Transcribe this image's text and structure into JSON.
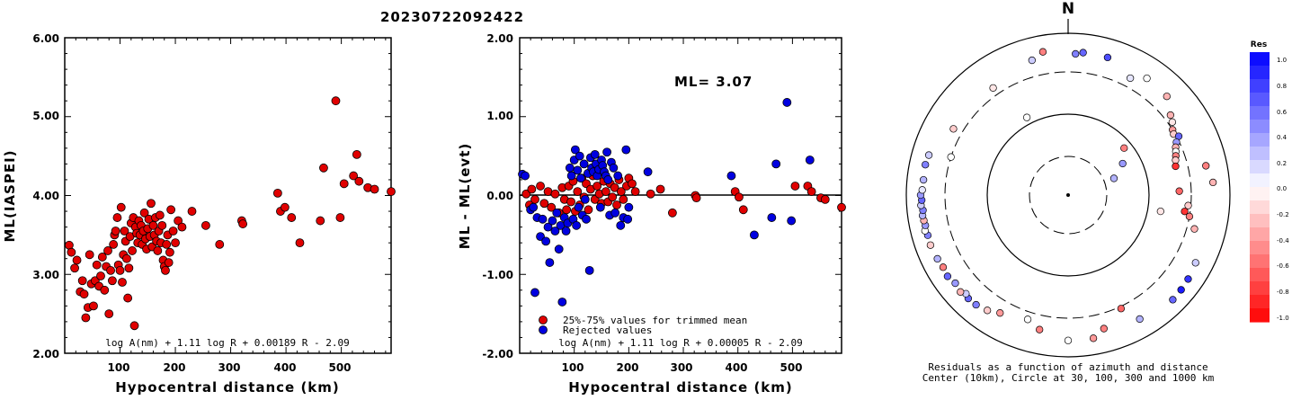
{
  "event_id": "20230722092422",
  "chart_data": [
    {
      "type": "scatter",
      "xlabel": "Hypocentral distance (km)",
      "ylabel": "ML(IASPEI)",
      "xlim": [
        0,
        590
      ],
      "ylim": [
        2.0,
        6.0
      ],
      "xticks": [
        "100",
        "200",
        "300",
        "400",
        "500"
      ],
      "yticks": [
        "2.00",
        "3.00",
        "4.00",
        "5.00",
        "6.00"
      ],
      "formula": "log A(nm) + 1.11 log R + 0.00189 R - 2.09",
      "point_color": "#e00000",
      "points": [
        [
          8,
          3.37
        ],
        [
          12,
          3.28
        ],
        [
          18,
          3.08
        ],
        [
          22,
          3.18
        ],
        [
          28,
          2.78
        ],
        [
          32,
          2.92
        ],
        [
          35,
          2.75
        ],
        [
          38,
          2.45
        ],
        [
          42,
          2.58
        ],
        [
          45,
          3.25
        ],
        [
          48,
          2.88
        ],
        [
          52,
          2.6
        ],
        [
          55,
          2.92
        ],
        [
          58,
          3.12
        ],
        [
          62,
          2.85
        ],
        [
          65,
          2.98
        ],
        [
          68,
          3.22
        ],
        [
          72,
          2.8
        ],
        [
          75,
          3.1
        ],
        [
          78,
          3.3
        ],
        [
          80,
          2.5
        ],
        [
          83,
          3.05
        ],
        [
          86,
          2.92
        ],
        [
          88,
          3.38
        ],
        [
          90,
          3.5
        ],
        [
          92,
          3.55
        ],
        [
          95,
          3.72
        ],
        [
          97,
          3.12
        ],
        [
          100,
          3.05
        ],
        [
          102,
          3.85
        ],
        [
          104,
          2.9
        ],
        [
          106,
          3.25
        ],
        [
          108,
          3.55
        ],
        [
          110,
          3.42
        ],
        [
          112,
          3.2
        ],
        [
          114,
          2.7
        ],
        [
          116,
          3.08
        ],
        [
          118,
          3.48
        ],
        [
          120,
          3.65
        ],
        [
          122,
          3.3
        ],
        [
          124,
          3.72
        ],
        [
          126,
          2.35
        ],
        [
          128,
          3.6
        ],
        [
          130,
          3.52
        ],
        [
          132,
          3.4
        ],
        [
          134,
          3.68
        ],
        [
          136,
          3.5
        ],
        [
          138,
          3.62
        ],
        [
          140,
          3.38
        ],
        [
          142,
          3.55
        ],
        [
          144,
          3.78
        ],
        [
          146,
          3.45
        ],
        [
          148,
          3.32
        ],
        [
          150,
          3.58
        ],
        [
          152,
          3.7
        ],
        [
          154,
          3.48
        ],
        [
          156,
          3.9
        ],
        [
          158,
          3.35
        ],
        [
          160,
          3.62
        ],
        [
          162,
          3.5
        ],
        [
          164,
          3.72
        ],
        [
          166,
          3.42
        ],
        [
          168,
          3.3
        ],
        [
          170,
          3.55
        ],
        [
          172,
          3.75
        ],
        [
          174,
          3.4
        ],
        [
          176,
          3.62
        ],
        [
          178,
          3.18
        ],
        [
          180,
          3.1
        ],
        [
          182,
          3.05
        ],
        [
          184,
          3.38
        ],
        [
          186,
          3.5
        ],
        [
          188,
          3.15
        ],
        [
          190,
          3.28
        ],
        [
          192,
          3.82
        ],
        [
          196,
          3.55
        ],
        [
          200,
          3.4
        ],
        [
          205,
          3.68
        ],
        [
          212,
          3.6
        ],
        [
          230,
          3.8
        ],
        [
          255,
          3.62
        ],
        [
          280,
          3.38
        ],
        [
          320,
          3.68
        ],
        [
          322,
          3.64
        ],
        [
          385,
          4.03
        ],
        [
          390,
          3.8
        ],
        [
          398,
          3.85
        ],
        [
          410,
          3.72
        ],
        [
          425,
          3.4
        ],
        [
          462,
          3.68
        ],
        [
          468,
          4.35
        ],
        [
          490,
          5.2
        ],
        [
          498,
          3.72
        ],
        [
          505,
          4.15
        ],
        [
          522,
          4.25
        ],
        [
          528,
          4.52
        ],
        [
          532,
          4.18
        ],
        [
          548,
          4.1
        ],
        [
          560,
          4.08
        ],
        [
          590,
          4.05
        ]
      ]
    },
    {
      "type": "scatter",
      "xlabel": "Hypocentral distance (km)",
      "ylabel": "ML - ML(evt)",
      "xlim": [
        0,
        590
      ],
      "ylim": [
        -2.0,
        2.0
      ],
      "xticks": [
        "100",
        "200",
        "300",
        "400",
        "500"
      ],
      "yticks": [
        "-2.00",
        "-1.00",
        "0.00",
        "1.00",
        "2.00"
      ],
      "ml_label": "ML= 3.07",
      "formula": "log A(nm) + 1.11 log R + 0.00005 R - 2.09",
      "legend": [
        "25%-75% values for trimmed mean",
        "Rejected values"
      ],
      "series_colors": [
        "#e00000",
        "#0000e0"
      ],
      "points_trimmed": [
        [
          12,
          0.02
        ],
        [
          18,
          -0.12
        ],
        [
          22,
          0.08
        ],
        [
          28,
          -0.05
        ],
        [
          38,
          0.12
        ],
        [
          45,
          -0.1
        ],
        [
          52,
          0.05
        ],
        [
          58,
          -0.15
        ],
        [
          65,
          0.02
        ],
        [
          72,
          -0.22
        ],
        [
          78,
          0.1
        ],
        [
          82,
          -0.05
        ],
        [
          86,
          -0.18
        ],
        [
          90,
          0.12
        ],
        [
          94,
          -0.08
        ],
        [
          98,
          0.18
        ],
        [
          102,
          -0.2
        ],
        [
          106,
          0.05
        ],
        [
          110,
          -0.12
        ],
        [
          114,
          0.22
        ],
        [
          118,
          -0.02
        ],
        [
          122,
          0.15
        ],
        [
          126,
          -0.18
        ],
        [
          130,
          0.08
        ],
        [
          134,
          0.25
        ],
        [
          138,
          -0.05
        ],
        [
          142,
          0.12
        ],
        [
          146,
          0.02
        ],
        [
          150,
          -0.1
        ],
        [
          154,
          0.18
        ],
        [
          158,
          0.05
        ],
        [
          162,
          -0.08
        ],
        [
          166,
          0.15
        ],
        [
          170,
          -0.02
        ],
        [
          174,
          0.1
        ],
        [
          178,
          -0.12
        ],
        [
          182,
          0.2
        ],
        [
          186,
          0.05
        ],
        [
          190,
          -0.05
        ],
        [
          196,
          0.12
        ],
        [
          200,
          0.22
        ],
        [
          206,
          0.15
        ],
        [
          212,
          0.05
        ],
        [
          240,
          0.02
        ],
        [
          258,
          0.08
        ],
        [
          280,
          -0.22
        ],
        [
          322,
          0.0
        ],
        [
          324,
          -0.03
        ],
        [
          395,
          0.05
        ],
        [
          402,
          -0.02
        ],
        [
          410,
          -0.18
        ],
        [
          505,
          0.12
        ],
        [
          528,
          0.12
        ],
        [
          535,
          0.05
        ],
        [
          552,
          -0.03
        ],
        [
          560,
          -0.05
        ],
        [
          590,
          -0.15
        ]
      ],
      "points_rejected": [
        [
          5,
          0.27
        ],
        [
          10,
          0.25
        ],
        [
          20,
          -0.18
        ],
        [
          25,
          -0.15
        ],
        [
          28,
          -1.23
        ],
        [
          32,
          -0.28
        ],
        [
          38,
          -0.52
        ],
        [
          42,
          -0.3
        ],
        [
          48,
          -0.58
        ],
        [
          52,
          -0.4
        ],
        [
          55,
          -0.85
        ],
        [
          60,
          -0.32
        ],
        [
          65,
          -0.45
        ],
        [
          68,
          -0.22
        ],
        [
          72,
          -0.68
        ],
        [
          75,
          -0.38
        ],
        [
          78,
          -1.35
        ],
        [
          82,
          -0.28
        ],
        [
          85,
          -0.45
        ],
        [
          88,
          -0.35
        ],
        [
          92,
          0.35
        ],
        [
          95,
          0.25
        ],
        [
          98,
          -0.3
        ],
        [
          100,
          0.45
        ],
        [
          102,
          0.58
        ],
        [
          104,
          -0.38
        ],
        [
          106,
          0.32
        ],
        [
          108,
          -0.15
        ],
        [
          110,
          0.5
        ],
        [
          112,
          0.22
        ],
        [
          115,
          -0.25
        ],
        [
          118,
          0.4
        ],
        [
          120,
          -0.05
        ],
        [
          122,
          -0.3
        ],
        [
          125,
          0.28
        ],
        [
          128,
          -0.95
        ],
        [
          130,
          0.48
        ],
        [
          132,
          0.35
        ],
        [
          135,
          0.3
        ],
        [
          138,
          0.52
        ],
        [
          140,
          0.4
        ],
        [
          142,
          0.25
        ],
        [
          145,
          0.33
        ],
        [
          148,
          -0.15
        ],
        [
          150,
          0.45
        ],
        [
          152,
          0.38
        ],
        [
          155,
          0.3
        ],
        [
          158,
          0.25
        ],
        [
          160,
          0.55
        ],
        [
          162,
          0.2
        ],
        [
          165,
          -0.25
        ],
        [
          168,
          0.42
        ],
        [
          172,
          0.35
        ],
        [
          175,
          -0.22
        ],
        [
          180,
          0.25
        ],
        [
          185,
          -0.38
        ],
        [
          190,
          -0.28
        ],
        [
          195,
          0.58
        ],
        [
          198,
          -0.3
        ],
        [
          200,
          -0.15
        ],
        [
          235,
          0.3
        ],
        [
          388,
          0.25
        ],
        [
          430,
          -0.5
        ],
        [
          462,
          -0.28
        ],
        [
          470,
          0.4
        ],
        [
          490,
          1.18
        ],
        [
          498,
          -0.32
        ],
        [
          532,
          0.45
        ]
      ]
    },
    {
      "type": "scatter",
      "subtype": "polar",
      "north_label": "N",
      "caption_line1": "Residuals as a function of azimuth and distance",
      "caption_line2": "Center (10km), Circle at 30, 100, 300 and 1000 km",
      "colorbar_title": "Res",
      "colorbar_labels": [
        "1.0",
        "0.8",
        "0.6",
        "0.4",
        "0.2",
        "0.0",
        "-0.2",
        "-0.4",
        "-0.6",
        "-0.8",
        "-1.0"
      ],
      "colorbar_range": [
        -1.0,
        1.0
      ],
      "distance_rings_km": [
        30,
        100,
        300,
        1000
      ],
      "points_az_dist_res": [
        [
          350,
          600,
          -0.5
        ],
        [
          6,
          560,
          0.6
        ],
        [
          3,
          530,
          0.5
        ],
        [
          16,
          560,
          0.7
        ],
        [
          28,
          400,
          0.1
        ],
        [
          34,
          520,
          0.0
        ],
        [
          45,
          500,
          -0.3
        ],
        [
          52,
          370,
          -0.3
        ],
        [
          55,
          340,
          -0.1
        ],
        [
          58,
          300,
          -0.4
        ],
        [
          60,
          290,
          -0.2
        ],
        [
          62,
          320,
          0.6
        ],
        [
          64,
          280,
          0.4
        ],
        [
          66,
          260,
          -0.3
        ],
        [
          68,
          250,
          0.0
        ],
        [
          70,
          240,
          -0.5
        ],
        [
          72,
          230,
          -0.2
        ],
        [
          75,
          220,
          -0.8
        ],
        [
          78,
          520,
          -0.5
        ],
        [
          85,
          600,
          -0.3
        ],
        [
          88,
          220,
          -0.6
        ],
        [
          95,
          280,
          -0.2
        ],
        [
          98,
          260,
          -0.8
        ],
        [
          100,
          300,
          -0.5
        ],
        [
          105,
          380,
          -0.3
        ],
        [
          118,
          580,
          0.2
        ],
        [
          125,
          620,
          0.8
        ],
        [
          130,
          640,
          0.9
        ],
        [
          135,
          650,
          0.6
        ],
        [
          150,
          560,
          0.3
        ],
        [
          155,
          320,
          -0.6
        ],
        [
          165,
          480,
          -0.5
        ],
        [
          170,
          600,
          -0.4
        ],
        [
          180,
          600,
          0.0
        ],
        [
          192,
          470,
          -0.5
        ],
        [
          198,
          380,
          0.0
        ],
        [
          210,
          450,
          -0.4
        ],
        [
          215,
          520,
          -0.2
        ],
        [
          220,
          560,
          0.5
        ],
        [
          224,
          570,
          0.6
        ],
        [
          226,
          540,
          0.2
        ],
        [
          228,
          590,
          -0.3
        ],
        [
          232,
          560,
          0.4
        ],
        [
          236,
          600,
          0.6
        ],
        [
          240,
          580,
          -0.5
        ],
        [
          244,
          600,
          0.3
        ],
        [
          250,
          620,
          -0.2
        ],
        [
          254,
          610,
          0.5
        ],
        [
          256,
          640,
          0.0
        ],
        [
          258,
          610,
          0.4
        ],
        [
          260,
          620,
          -0.3
        ],
        [
          262,
          630,
          0.3
        ],
        [
          264,
          610,
          0.5
        ],
        [
          266,
          640,
          0.2
        ],
        [
          268,
          620,
          0.6
        ],
        [
          270,
          640,
          0.4
        ],
        [
          272,
          610,
          0.1
        ],
        [
          276,
          600,
          0.3
        ],
        [
          282,
          610,
          0.5
        ],
        [
          286,
          590,
          0.2
        ],
        [
          288,
          300,
          0.0
        ],
        [
          300,
          400,
          -0.2
        ],
        [
          325,
          380,
          -0.1
        ],
        [
          332,
          120,
          0.0
        ],
        [
          345,
          500,
          0.2
        ],
        [
          60,
          60,
          0.4
        ],
        [
          70,
          40,
          0.3
        ],
        [
          50,
          80,
          -0.5
        ],
        [
          100,
          140,
          -0.1
        ]
      ]
    }
  ]
}
